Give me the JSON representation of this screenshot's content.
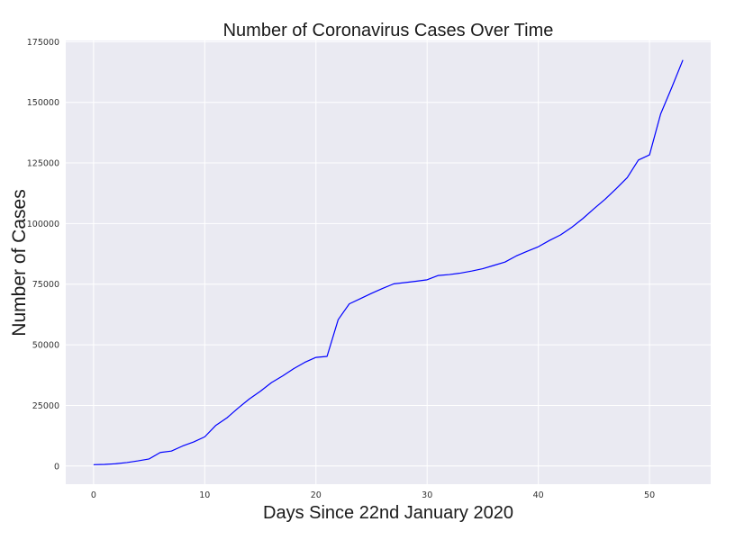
{
  "chart_data": {
    "type": "line",
    "title": "Number of Coronavirus Cases Over Time",
    "xlabel": "Days Since 22nd January 2020",
    "ylabel": "Number of Cases",
    "xlim": [
      -2.5,
      55.5
    ],
    "ylim": [
      -7500,
      175500
    ],
    "xticks": [
      0,
      10,
      20,
      30,
      40,
      50
    ],
    "yticks": [
      0,
      25000,
      50000,
      75000,
      100000,
      125000,
      150000,
      175000
    ],
    "grid": true,
    "legend": "none",
    "series": [
      {
        "color": "#0000ff",
        "x": [
          0,
          1,
          2,
          3,
          4,
          5,
          6,
          7,
          8,
          9,
          10,
          11,
          12,
          13,
          14,
          15,
          16,
          17,
          18,
          19,
          20,
          21,
          22,
          23,
          24,
          25,
          26,
          27,
          28,
          29,
          30,
          31,
          32,
          33,
          34,
          35,
          36,
          37,
          38,
          39,
          40,
          41,
          42,
          43,
          44,
          45,
          46,
          47,
          48,
          49,
          50,
          51,
          52,
          53
        ],
        "y": [
          555,
          654,
          941,
          1434,
          2118,
          2927,
          5578,
          6166,
          8234,
          9927,
          12038,
          16787,
          19881,
          23892,
          27635,
          30817,
          34391,
          37120,
          40150,
          42762,
          44802,
          45221,
          60368,
          66885,
          69030,
          71224,
          73258,
          75136,
          75639,
          76197,
          76819,
          78572,
          78958,
          79561,
          80406,
          81388,
          82746,
          84112,
          86604,
          88585,
          90443,
          93016,
          95314,
          98425,
          102050,
          106099,
          109991,
          114381,
          118948,
          126214,
          128343,
          145193,
          156097,
          167447
        ]
      }
    ],
    "colors": {
      "background": "#eaeaf2",
      "grid": "#ffffff",
      "line": "#0000ff"
    }
  }
}
